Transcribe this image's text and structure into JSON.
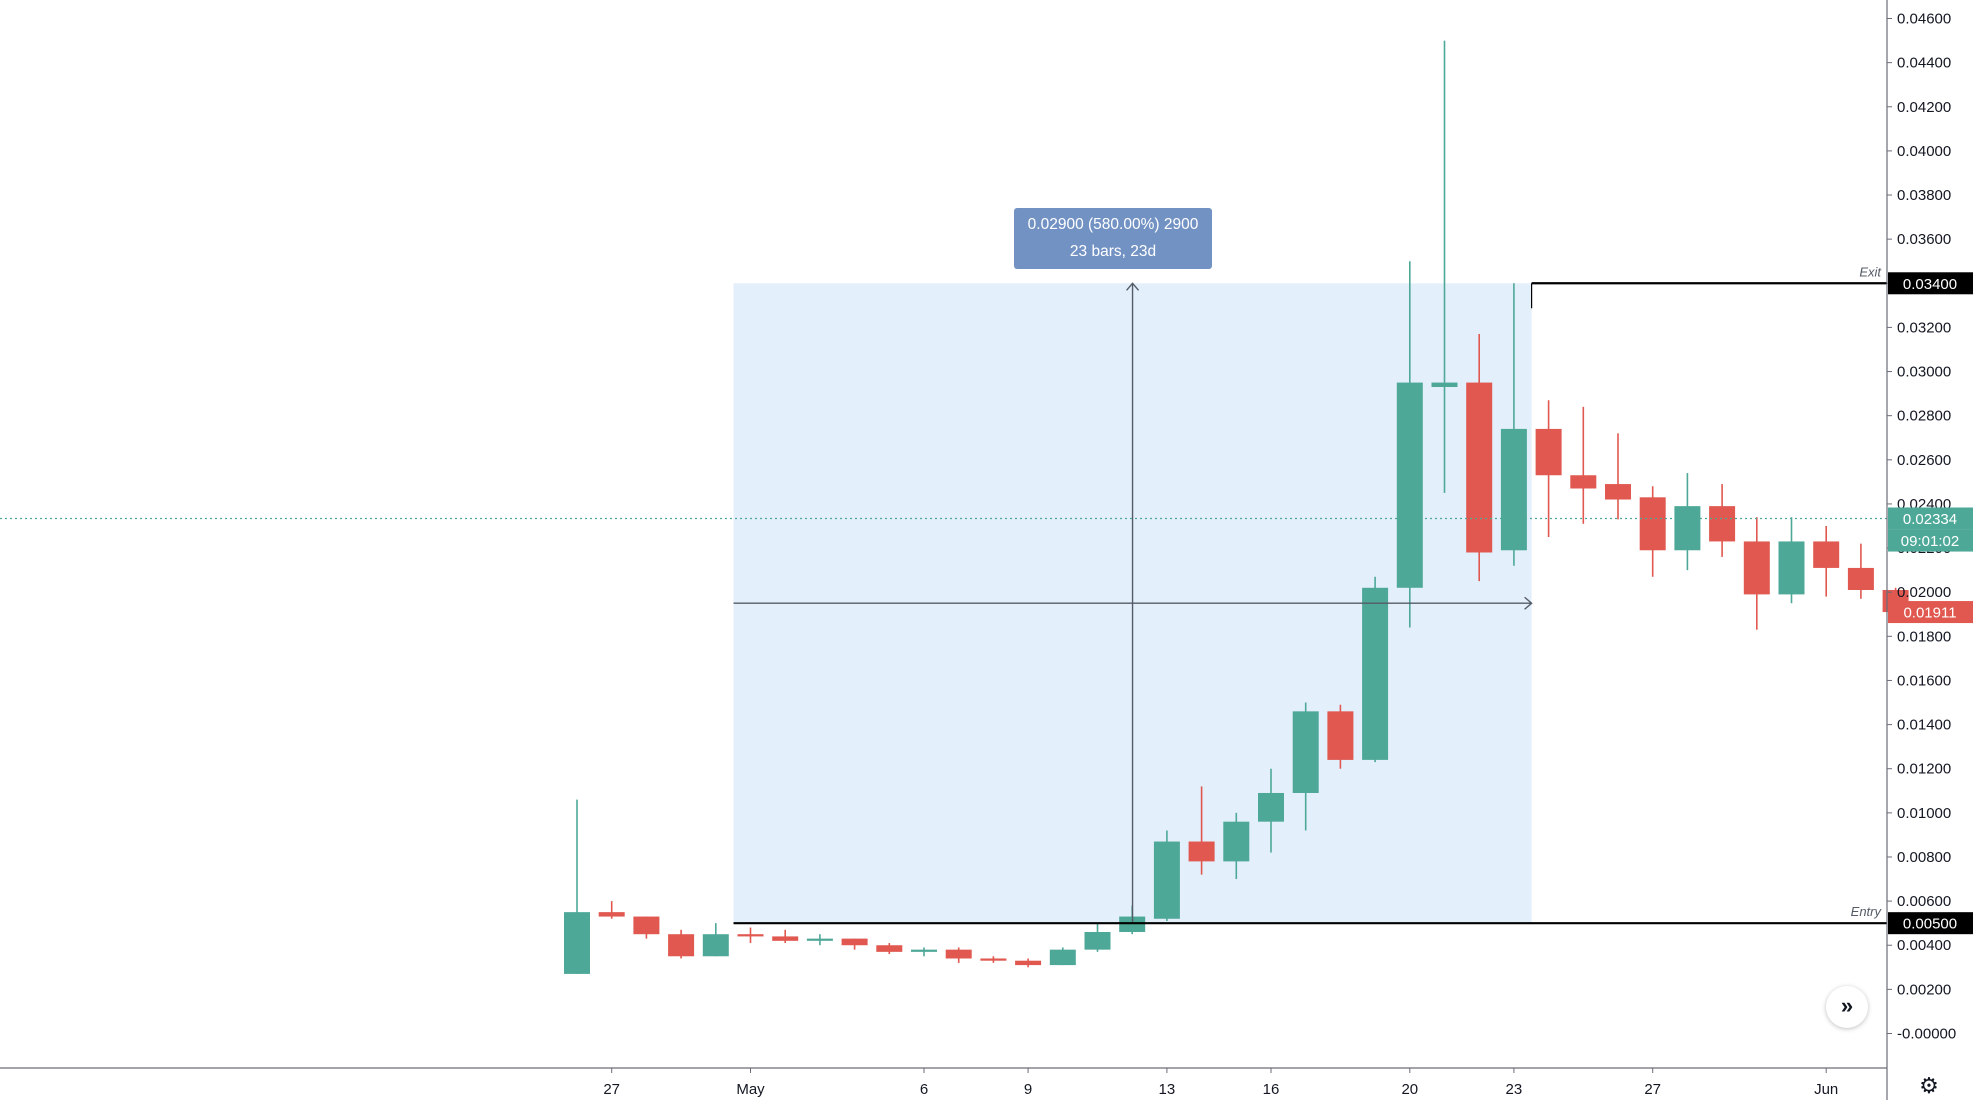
{
  "chart_data": {
    "type": "candlestick",
    "title": "",
    "ylim": [
      -0.0008,
      0.0466
    ],
    "y_ticks": [
      "0.04600",
      "0.04400",
      "0.04200",
      "0.04000",
      "0.03800",
      "0.03600",
      "0.03400",
      "0.03200",
      "0.03000",
      "0.02800",
      "0.02600",
      "0.02400",
      "0.02200",
      "0.02000",
      "0.01800",
      "0.01600",
      "0.01400",
      "0.01200",
      "0.01000",
      "0.00800",
      "0.00600",
      "0.00400",
      "0.00200",
      "-0.00000"
    ],
    "x_ticks": [
      {
        "label": "27",
        "bar": 1
      },
      {
        "label": "May",
        "bar": 5
      },
      {
        "label": "6",
        "bar": 10
      },
      {
        "label": "9",
        "bar": 13
      },
      {
        "label": "13",
        "bar": 17
      },
      {
        "label": "16",
        "bar": 20
      },
      {
        "label": "20",
        "bar": 24
      },
      {
        "label": "23",
        "bar": 27
      },
      {
        "label": "27",
        "bar": 31
      },
      {
        "label": "Jun",
        "bar": 36
      }
    ],
    "candles": [
      {
        "o": 0.0027,
        "h": 0.0106,
        "l": 0.0027,
        "c": 0.0055
      },
      {
        "o": 0.0055,
        "h": 0.006,
        "l": 0.0052,
        "c": 0.0053
      },
      {
        "o": 0.0053,
        "h": 0.0053,
        "l": 0.0043,
        "c": 0.0045
      },
      {
        "o": 0.0045,
        "h": 0.0047,
        "l": 0.0034,
        "c": 0.0035
      },
      {
        "o": 0.0035,
        "h": 0.005,
        "l": 0.0035,
        "c": 0.0045
      },
      {
        "o": 0.0045,
        "h": 0.0048,
        "l": 0.0041,
        "c": 0.0044
      },
      {
        "o": 0.0044,
        "h": 0.0047,
        "l": 0.0041,
        "c": 0.0042
      },
      {
        "o": 0.0042,
        "h": 0.0045,
        "l": 0.004,
        "c": 0.0043
      },
      {
        "o": 0.0043,
        "h": 0.0043,
        "l": 0.0038,
        "c": 0.004
      },
      {
        "o": 0.004,
        "h": 0.0041,
        "l": 0.0036,
        "c": 0.0037
      },
      {
        "o": 0.0037,
        "h": 0.0039,
        "l": 0.0035,
        "c": 0.0038
      },
      {
        "o": 0.0038,
        "h": 0.0039,
        "l": 0.0032,
        "c": 0.0034
      },
      {
        "o": 0.0034,
        "h": 0.0035,
        "l": 0.0032,
        "c": 0.0033
      },
      {
        "o": 0.0033,
        "h": 0.0034,
        "l": 0.003,
        "c": 0.0031
      },
      {
        "o": 0.0031,
        "h": 0.0039,
        "l": 0.0031,
        "c": 0.0038
      },
      {
        "o": 0.0038,
        "h": 0.005,
        "l": 0.0037,
        "c": 0.0046
      },
      {
        "o": 0.0046,
        "h": 0.0058,
        "l": 0.0045,
        "c": 0.0053
      },
      {
        "o": 0.0052,
        "h": 0.0092,
        "l": 0.0051,
        "c": 0.0087
      },
      {
        "o": 0.0087,
        "h": 0.0112,
        "l": 0.0072,
        "c": 0.0078
      },
      {
        "o": 0.0078,
        "h": 0.01,
        "l": 0.007,
        "c": 0.0096
      },
      {
        "o": 0.0096,
        "h": 0.012,
        "l": 0.0082,
        "c": 0.0109
      },
      {
        "o": 0.0109,
        "h": 0.015,
        "l": 0.0092,
        "c": 0.0146
      },
      {
        "o": 0.0146,
        "h": 0.0149,
        "l": 0.012,
        "c": 0.0124
      },
      {
        "o": 0.0124,
        "h": 0.0207,
        "l": 0.0123,
        "c": 0.0202
      },
      {
        "o": 0.0202,
        "h": 0.035,
        "l": 0.0184,
        "c": 0.0295
      },
      {
        "o": 0.0293,
        "h": 0.045,
        "l": 0.0245,
        "c": 0.0295
      },
      {
        "o": 0.0295,
        "h": 0.0317,
        "l": 0.0205,
        "c": 0.0218
      },
      {
        "o": 0.0219,
        "h": 0.034,
        "l": 0.0212,
        "c": 0.0274
      },
      {
        "o": 0.0274,
        "h": 0.0287,
        "l": 0.0225,
        "c": 0.0253
      },
      {
        "o": 0.0253,
        "h": 0.0284,
        "l": 0.0231,
        "c": 0.0247
      },
      {
        "o": 0.0249,
        "h": 0.0272,
        "l": 0.0233,
        "c": 0.0242
      },
      {
        "o": 0.0243,
        "h": 0.0248,
        "l": 0.0207,
        "c": 0.0219
      },
      {
        "o": 0.0219,
        "h": 0.0254,
        "l": 0.021,
        "c": 0.0239
      },
      {
        "o": 0.0239,
        "h": 0.0249,
        "l": 0.0216,
        "c": 0.0223
      },
      {
        "o": 0.0223,
        "h": 0.0234,
        "l": 0.0183,
        "c": 0.0199
      },
      {
        "o": 0.0199,
        "h": 0.0234,
        "l": 0.0195,
        "c": 0.0223
      },
      {
        "o": 0.0223,
        "h": 0.023,
        "l": 0.0198,
        "c": 0.0211
      },
      {
        "o": 0.0211,
        "h": 0.0222,
        "l": 0.0197,
        "c": 0.0201
      },
      {
        "o": 0.0201,
        "h": 0.0202,
        "l": 0.0189,
        "c": 0.0191
      }
    ],
    "current_price": 0.02334,
    "measure": {
      "start_bar": 5,
      "end_bar": 28,
      "entry": 0.005,
      "exit": 0.034,
      "mid": 0.0195,
      "tooltip_line1": "0.02900 (580.00%) 2900",
      "tooltip_line2": "23 bars, 23d"
    },
    "price_labels": {
      "exit_price": "0.03400",
      "entry_price": "0.00500",
      "current_price": "0.02334",
      "countdown": "09:01:02",
      "last_price": "0.01911"
    },
    "line_labels": {
      "exit": "Exit",
      "entry": "Entry"
    }
  },
  "colors": {
    "up": "#4ea898",
    "down": "#e0584f",
    "range_fill": "#e3effb",
    "tooltip_bg": "#7392c4",
    "axis_text": "#131722",
    "label_bg_black": "#000000"
  },
  "icons": {
    "scroll": "double-chevron-right-icon",
    "settings": "gear-icon"
  }
}
